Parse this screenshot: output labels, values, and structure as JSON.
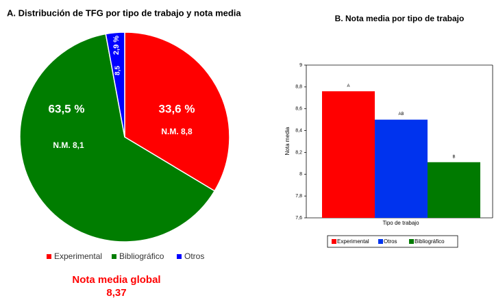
{
  "chart_data": [
    {
      "type": "pie",
      "title": "A. Distribución de TFG por tipo de trabajo y nota media",
      "categories": [
        "Experimental",
        "Bibliográfico",
        "Otros"
      ],
      "values": [
        33.6,
        63.5,
        2.9
      ],
      "value_labels": [
        "33,6 %",
        "63,5 %",
        "2,9 %"
      ],
      "slice_notes": [
        "N.M. 8,8",
        "N.M. 8,1",
        "8,5"
      ],
      "colors": [
        "#ff0000",
        "#007d00",
        "#0000ff"
      ],
      "footer_label": "Nota media global",
      "footer_value": "8,37"
    },
    {
      "type": "bar",
      "title": "B. Nota media por tipo de trabajo",
      "xlabel": "Tipo de trabajo",
      "ylabel": "Nota media",
      "categories": [
        "Experimental",
        "Otros",
        "Bibliográfico"
      ],
      "values": [
        8.76,
        8.5,
        8.11
      ],
      "annotations": [
        "A",
        "AB",
        "B"
      ],
      "colors": [
        "#ff0000",
        "#0033ee",
        "#007a00"
      ],
      "ylim": [
        7.6,
        9
      ],
      "yticks": [
        {
          "value": 7.6,
          "label": "7,6"
        },
        {
          "value": 7.8,
          "label": "7,8"
        },
        8,
        {
          "value": 8.2,
          "label": "8,2"
        },
        {
          "value": 8.4,
          "label": "8,4"
        },
        {
          "value": 8.6,
          "label": "8,6"
        },
        {
          "value": 8.8,
          "label": "8,8"
        },
        9
      ]
    }
  ]
}
